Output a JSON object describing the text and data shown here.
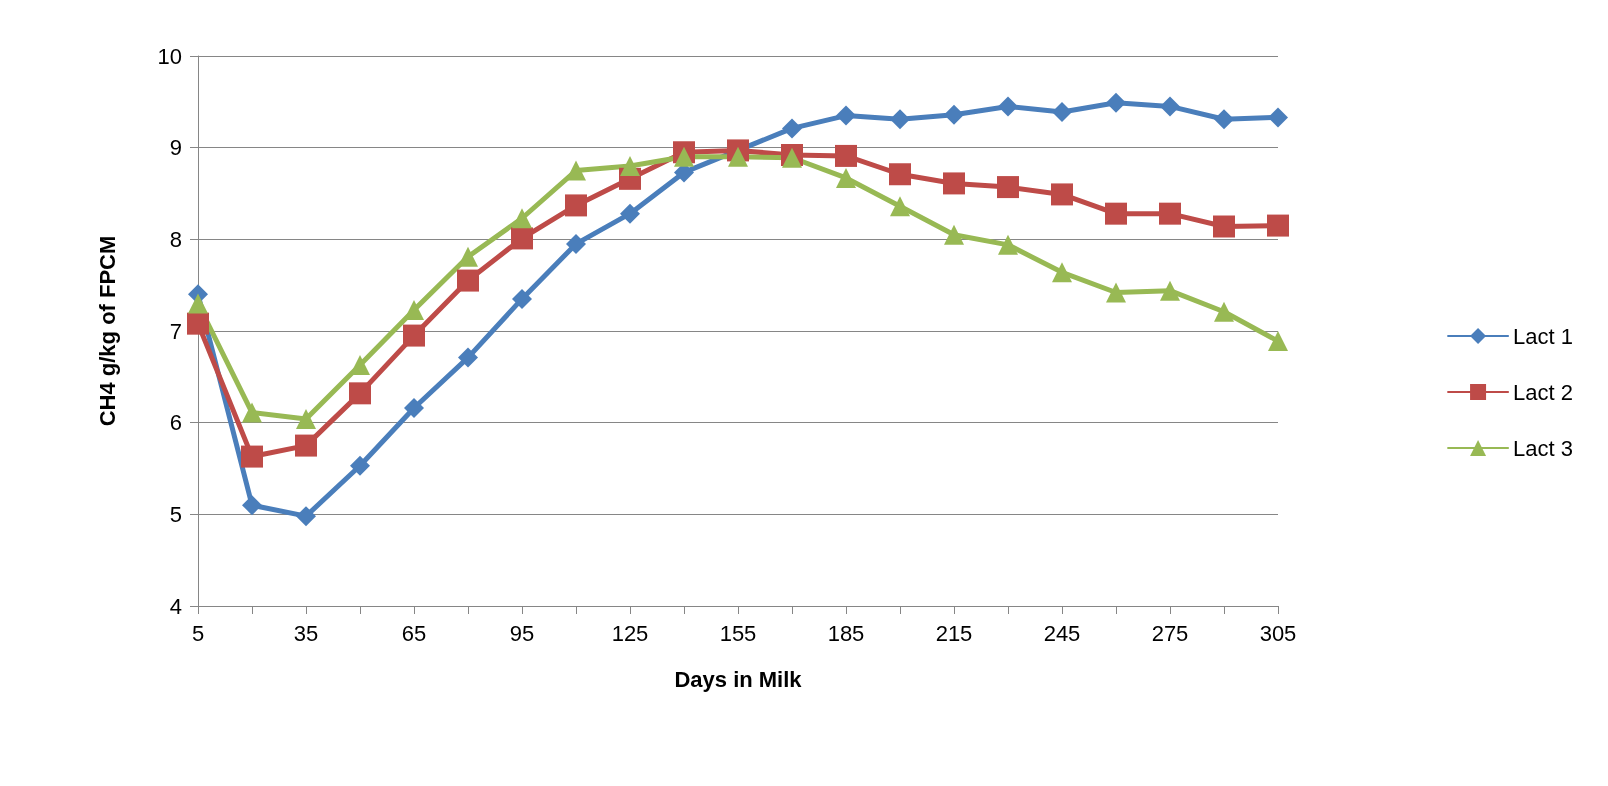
{
  "chart_data": {
    "type": "line",
    "xlabel": "Days in Milk",
    "ylabel": "CH4 g/kg of FPCM",
    "x": [
      5,
      20,
      35,
      50,
      65,
      80,
      95,
      110,
      125,
      140,
      155,
      170,
      185,
      200,
      215,
      230,
      245,
      260,
      275,
      290,
      305
    ],
    "series": [
      {
        "name": "Lact 1",
        "color": "#4a7ebb",
        "marker": "diamond",
        "values": [
          7.4,
          5.1,
          4.98,
          5.53,
          6.16,
          6.71,
          7.35,
          7.95,
          8.28,
          8.73,
          null,
          9.21,
          9.35,
          9.31,
          9.36,
          9.45,
          9.39,
          9.49,
          9.45,
          9.31,
          9.33
        ]
      },
      {
        "name": "Lact 2",
        "color": "#be4b48",
        "marker": "square",
        "values": [
          7.08,
          5.63,
          5.75,
          6.32,
          6.95,
          7.55,
          8.01,
          8.37,
          8.66,
          8.95,
          8.97,
          8.92,
          8.91,
          8.71,
          8.61,
          8.57,
          8.49,
          8.28,
          8.28,
          8.14,
          8.15
        ]
      },
      {
        "name": "Lact 3",
        "color": "#98b954",
        "marker": "triangle",
        "values": [
          7.3,
          6.11,
          6.04,
          6.63,
          7.23,
          7.81,
          8.23,
          8.75,
          8.8,
          8.9,
          8.9,
          8.89,
          8.67,
          8.36,
          8.05,
          7.94,
          7.64,
          7.42,
          7.44,
          7.21,
          6.89
        ]
      }
    ],
    "xlim": [
      5,
      305
    ],
    "xticks": [
      5,
      {
        "value": 20,
        "label": null
      },
      35,
      {
        "value": 50,
        "label": null
      },
      65,
      {
        "value": 80,
        "label": null
      },
      95,
      {
        "value": 110,
        "label": null
      },
      125,
      {
        "value": 140,
        "label": null
      },
      155,
      {
        "value": 170,
        "label": null
      },
      185,
      {
        "value": 200,
        "label": null
      },
      215,
      {
        "value": 230,
        "label": null
      },
      245,
      {
        "value": 260,
        "label": null
      },
      275,
      {
        "value": 290,
        "label": null
      },
      305
    ],
    "ylim": [
      4,
      10
    ],
    "yticks": [
      4,
      5,
      6,
      7,
      8,
      9,
      10
    ],
    "grid": "y",
    "legend": "right",
    "line_style": "solid"
  }
}
